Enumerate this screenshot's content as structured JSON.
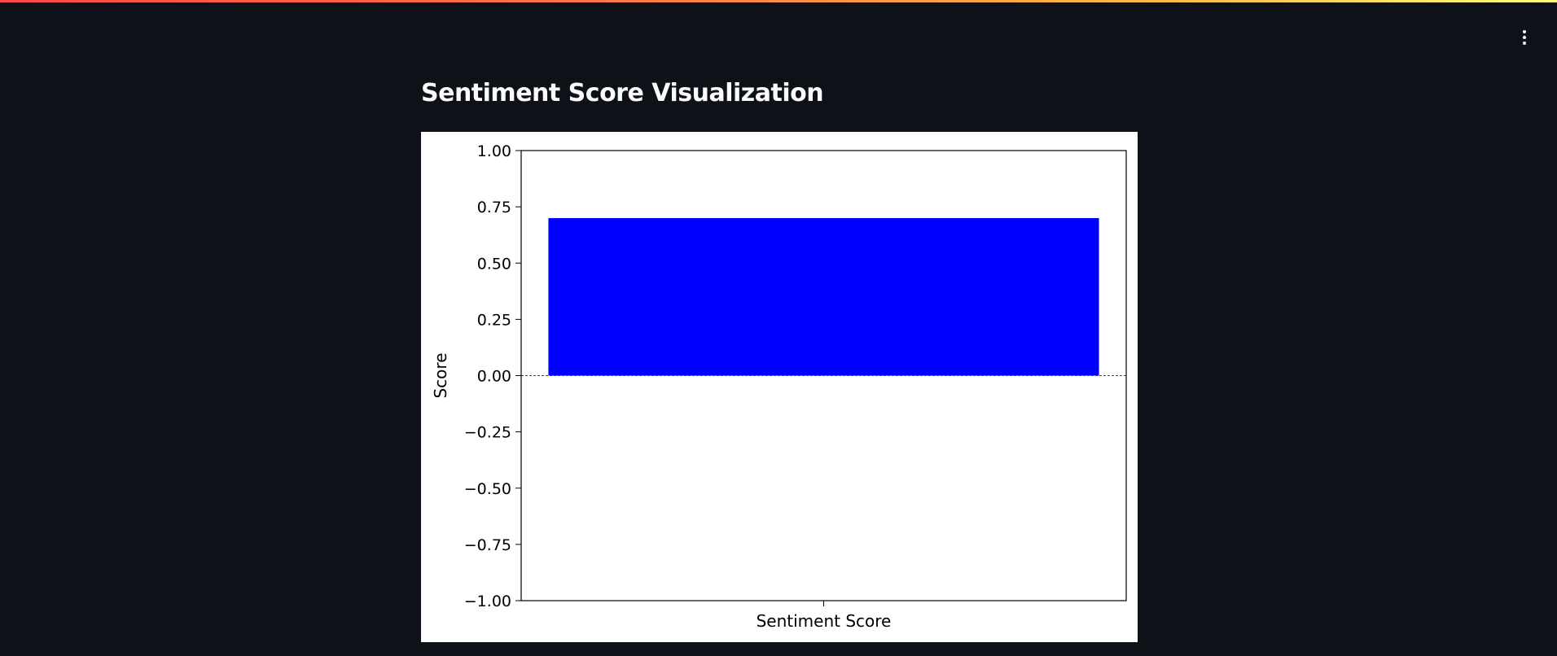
{
  "page": {
    "title": "Sentiment Score Visualization"
  },
  "icons": {
    "menu": "vertical-ellipsis-icon"
  },
  "colors": {
    "background": "#0e1117",
    "bar": "#0000ff",
    "text": "#fafafa"
  },
  "chart_data": {
    "type": "bar",
    "categories": [
      "Sentiment Score"
    ],
    "values": [
      0.7
    ],
    "xlabel": "Sentiment Score",
    "ylabel": "Score",
    "ylim": [
      -1.0,
      1.0
    ],
    "yticks": [
      1.0,
      0.75,
      0.5,
      0.25,
      0.0,
      -0.25,
      -0.5,
      -0.75,
      -1.0
    ],
    "ytick_labels": [
      "1.00",
      "0.75",
      "0.50",
      "0.25",
      "0.00",
      "−0.25",
      "−0.50",
      "−0.75",
      "−1.00"
    ],
    "baseline": 0,
    "baseline_style": "dashed",
    "grid": false,
    "legend": "none"
  }
}
